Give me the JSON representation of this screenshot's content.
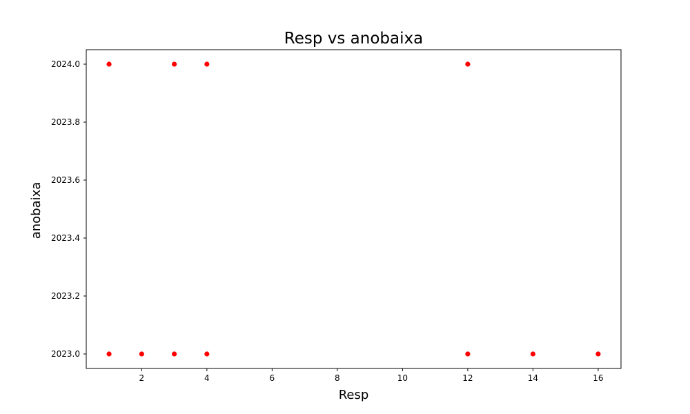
{
  "chart_data": {
    "type": "scatter",
    "title": "Resp vs anobaixa",
    "xlabel": "Resp",
    "ylabel": "anobaixa",
    "xlim": [
      0.3,
      16.7
    ],
    "ylim": [
      2022.95,
      2024.05
    ],
    "xticks": [
      2,
      4,
      6,
      8,
      10,
      12,
      14,
      16
    ],
    "xtick_labels": [
      "2",
      "4",
      "6",
      "8",
      "10",
      "12",
      "14",
      "16"
    ],
    "yticks": [
      2023.0,
      2023.2,
      2023.4,
      2023.6,
      2023.8,
      2024.0
    ],
    "ytick_labels": [
      "2023.0",
      "2023.2",
      "2023.4",
      "2023.6",
      "2023.8",
      "2024.0"
    ],
    "grid": false,
    "legend": "none",
    "marker_color": "#ff0000",
    "series": [
      {
        "x": [
          1,
          3,
          4,
          12,
          1,
          2,
          3,
          4,
          12,
          14,
          16
        ],
        "y": [
          2024,
          2024,
          2024,
          2024,
          2023,
          2023,
          2023,
          2023,
          2023,
          2023,
          2023
        ]
      }
    ]
  }
}
